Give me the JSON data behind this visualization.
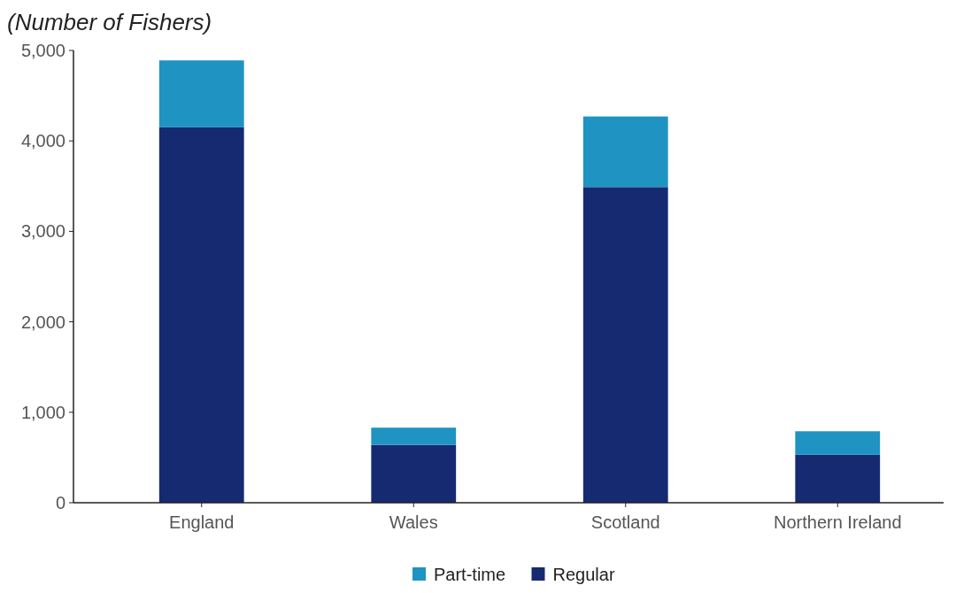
{
  "chart_data": {
    "type": "bar",
    "title": "(Number of Fishers)",
    "categories": [
      "England",
      "Wales",
      "Scotland",
      "Northern Ireland"
    ],
    "stacked": true,
    "series": [
      {
        "name": "Regular",
        "color": "#162a72",
        "values": [
          4150,
          640,
          3490,
          530
        ]
      },
      {
        "name": "Part-time",
        "color": "#1f93c2",
        "values": [
          740,
          190,
          780,
          260
        ]
      }
    ],
    "ylim": [
      0,
      5000
    ],
    "yticks": [
      {
        "value": 0,
        "label": "0"
      },
      {
        "value": 1000,
        "label": "1,000"
      },
      {
        "value": 2000,
        "label": "2,000"
      },
      {
        "value": 3000,
        "label": "3,000"
      },
      {
        "value": 4000,
        "label": "4,000"
      },
      {
        "value": 5000,
        "label": "5,000"
      }
    ],
    "grid": false,
    "legend": "bottom"
  }
}
